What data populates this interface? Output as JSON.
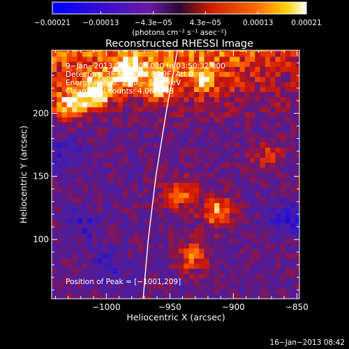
{
  "chart_data": {
    "type": "heatmap",
    "title": "Reconstructed RHESSI Image",
    "xlabel": "Heliocentric X (arcsec)",
    "ylabel": "Heliocentric Y (arcsec)",
    "xlim": [
      -1043,
      -848
    ],
    "ylim": [
      53,
      250
    ],
    "xticks": [
      -1000,
      -950,
      -900,
      -850
    ],
    "xtick_labels": [
      "−1000",
      "−950",
      "−900",
      "−850"
    ],
    "yticks": [
      100,
      150,
      200
    ],
    "ytick_labels": [
      "100",
      "150",
      "200"
    ],
    "colorbar": {
      "range": [
        -0.00021,
        0.00021
      ],
      "ticks": [
        -0.00021,
        -0.00013,
        -4.3e-05,
        4.3e-05,
        0.00013,
        0.00021
      ],
      "tick_labels": [
        "−0.00021",
        "−0.00013",
        "−4.3e−05",
        "4.3e−05",
        "0.00013",
        "0.00021"
      ],
      "unit_label": "(photons cm⁻² s⁻¹ asec⁻²)",
      "colors": [
        "#0000ff",
        "#6a1aa6",
        "#cc1a00",
        "#ff5000",
        "#ffc000",
        "#ffffff"
      ]
    },
    "annotations": [
      "9−Jan−2013 03:47:08.000 to 03:50:32.000",
      "Detectors: 3F 5F 6F 7F 8F 9F, Att 0",
      "Energy Range: 25.0 − 50.0 keV",
      "Clean    Total counts: 4.06E+03"
    ],
    "peak_label": "Position of Peak = [−1001,209]",
    "peak": [
      -1001,
      209
    ],
    "limb_curve": [
      [
        -971,
        53
      ],
      [
        -967,
        100
      ],
      [
        -961,
        150
      ],
      [
        -953,
        200
      ],
      [
        -944,
        250
      ]
    ],
    "intensity_features": [
      {
        "x": -1010,
        "y": 215,
        "level": 0.98
      },
      {
        "x": -985,
        "y": 230,
        "level": 0.9
      },
      {
        "x": -1030,
        "y": 205,
        "level": 0.85
      },
      {
        "x": -960,
        "y": 220,
        "level": 0.75
      },
      {
        "x": -925,
        "y": 225,
        "level": 0.6
      },
      {
        "x": -915,
        "y": 120,
        "level": 0.92
      },
      {
        "x": -945,
        "y": 135,
        "level": 0.85
      },
      {
        "x": -935,
        "y": 85,
        "level": 0.7
      },
      {
        "x": -875,
        "y": 165,
        "level": 0.5
      },
      {
        "x": -1020,
        "y": 110,
        "level": -0.35
      },
      {
        "x": -1000,
        "y": 75,
        "level": -0.4
      },
      {
        "x": -858,
        "y": 115,
        "level": -0.5
      },
      {
        "x": -1035,
        "y": 165,
        "level": -0.3
      }
    ]
  },
  "footer_date": "16−Jan−2013 08:42"
}
